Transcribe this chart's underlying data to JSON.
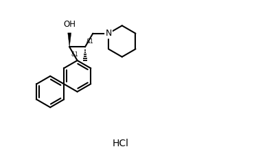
{
  "background_color": "#ffffff",
  "line_color": "#000000",
  "line_width": 1.5,
  "hcl_label": "HCl",
  "oh_label": "OH",
  "n_label": "N",
  "stereo1": "&1",
  "stereo2": "&1",
  "figsize": [
    3.89,
    2.33
  ],
  "dpi": 100
}
